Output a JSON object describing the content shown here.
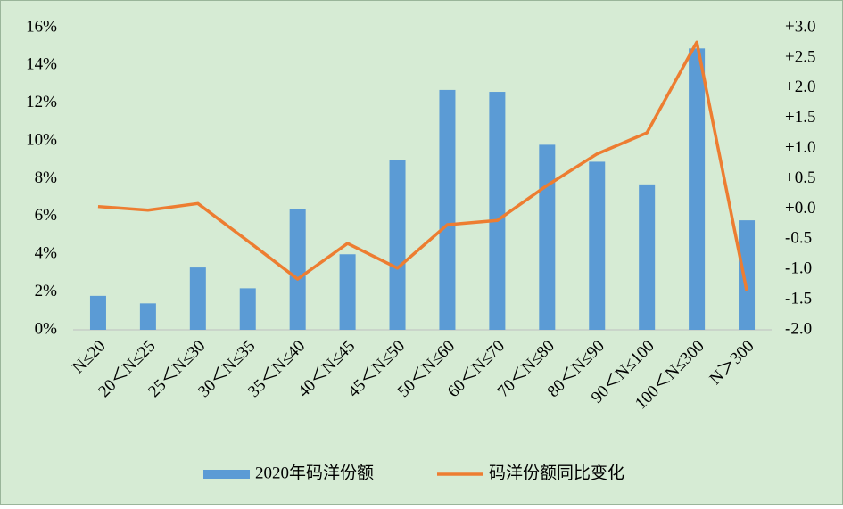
{
  "chart_data": {
    "type": "bar_line",
    "categories": [
      "N≤20",
      "20＜N≤25",
      "25＜N≤30",
      "30＜N≤35",
      "35＜N≤40",
      "40＜N≤45",
      "45＜N≤50",
      "50＜N≤60",
      "60＜N≤70",
      "70＜N≤80",
      "80＜N≤90",
      "90＜N≤100",
      "100＜N≤300",
      "N＞300"
    ],
    "series": [
      {
        "name": "2020年码洋份额",
        "type": "bar",
        "color": "#5b9bd5",
        "values": [
          1.8,
          1.4,
          3.3,
          2.2,
          6.4,
          4.0,
          9.0,
          12.7,
          12.6,
          9.8,
          8.9,
          7.7,
          14.9,
          5.8
        ]
      },
      {
        "name": "码洋份额同比变化",
        "type": "line",
        "axis": "y2",
        "color": "#ed7d31",
        "values": [
          0.04,
          -0.02,
          0.09,
          -0.53,
          -1.16,
          -0.57,
          -0.98,
          -0.26,
          -0.19,
          0.39,
          0.91,
          1.26,
          2.76,
          -1.35
        ]
      }
    ],
    "ylim": [
      0,
      16
    ],
    "yticks": [
      {
        "value": 0,
        "label": "0%"
      },
      {
        "value": 2,
        "label": "2%"
      },
      {
        "value": 4,
        "label": "4%"
      },
      {
        "value": 6,
        "label": "6%"
      },
      {
        "value": 8,
        "label": "8%"
      },
      {
        "value": 10,
        "label": "10%"
      },
      {
        "value": 12,
        "label": "12%"
      },
      {
        "value": 14,
        "label": "14%"
      },
      {
        "value": 16,
        "label": "16%"
      }
    ],
    "y2lim": [
      -2,
      3
    ],
    "y2ticks": [
      {
        "value": -2,
        "label": "-2.0"
      },
      {
        "value": -1.5,
        "label": "-1.5"
      },
      {
        "value": -1,
        "label": "-1.0"
      },
      {
        "value": -0.5,
        "label": "-0.5"
      },
      {
        "value": 0,
        "label": "+0.0"
      },
      {
        "value": 0.5,
        "label": "+0.5"
      },
      {
        "value": 1,
        "label": "+1.0"
      },
      {
        "value": 1.5,
        "label": "+1.5"
      },
      {
        "value": 2,
        "label": "+2.0"
      },
      {
        "value": 2.5,
        "label": "+2.5"
      },
      {
        "value": 3,
        "label": "+3.0"
      }
    ],
    "legend": "bottom"
  }
}
